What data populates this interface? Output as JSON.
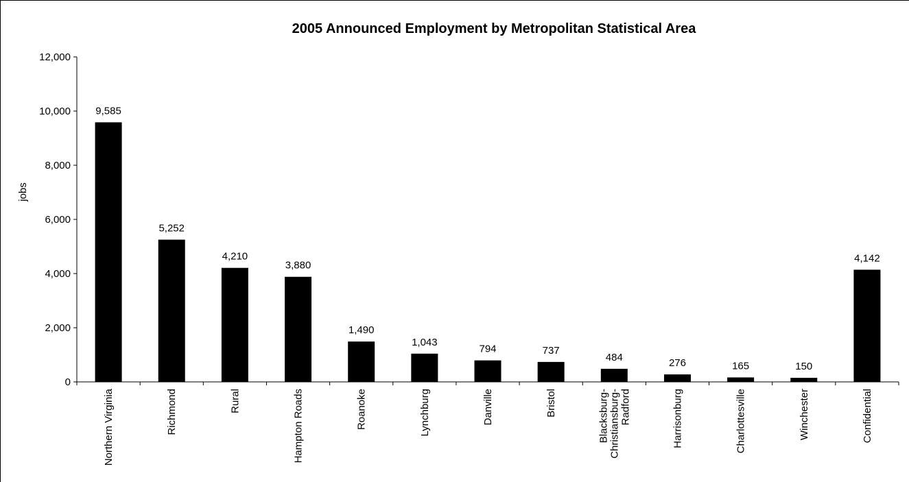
{
  "chart_data": {
    "type": "bar",
    "title": "2005 Announced Employment by Metropolitan Statistical Area",
    "xlabel": "",
    "ylabel": "jobs",
    "ylim": [
      0,
      12000
    ],
    "yticks": [
      "0",
      "2,000",
      "4,000",
      "6,000",
      "8,000",
      "10,000",
      "12,000"
    ],
    "ytick_values": [
      0,
      2000,
      4000,
      6000,
      8000,
      10000,
      12000
    ],
    "grid": false,
    "bar_color": "#000000",
    "categories": [
      [
        "Northern Virginia"
      ],
      [
        "Richmond"
      ],
      [
        "Rural"
      ],
      [
        "Hampton Roads"
      ],
      [
        "Roanoke"
      ],
      [
        "Lynchburg"
      ],
      [
        "Danville"
      ],
      [
        "Bristol"
      ],
      [
        "Blacksburg-",
        "Christiansburg-",
        "Radford"
      ],
      [
        "Harrisonburg"
      ],
      [
        "Charlottesville"
      ],
      [
        "Winchester"
      ],
      [
        "Confidential"
      ]
    ],
    "values": [
      9585,
      5252,
      4210,
      3880,
      1490,
      1043,
      794,
      737,
      484,
      276,
      165,
      150,
      4142
    ],
    "value_labels": [
      "9,585",
      "5,252",
      "4,210",
      "3,880",
      "1,490",
      "1,043",
      "794",
      "737",
      "484",
      "276",
      "165",
      "150",
      "4,142"
    ]
  }
}
